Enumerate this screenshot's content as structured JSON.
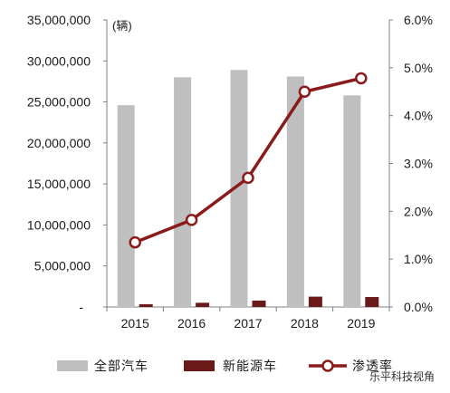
{
  "chart_data": {
    "type": "bar",
    "categories": [
      "2015",
      "2016",
      "2017",
      "2018",
      "2019"
    ],
    "series": [
      {
        "name": "全部汽车",
        "type": "bar",
        "axis": "left",
        "color": "#bfbfbf",
        "values": [
          24600000,
          28000000,
          28900000,
          28100000,
          25800000
        ]
      },
      {
        "name": "新能源车",
        "type": "bar",
        "axis": "left",
        "color": "#6b1a1a",
        "values": [
          330000,
          510000,
          780000,
          1260000,
          1210000
        ]
      },
      {
        "name": "渗透率",
        "type": "line",
        "axis": "right",
        "color": "#8b1a1a",
        "values": [
          0.0135,
          0.0182,
          0.027,
          0.045,
          0.0478
        ]
      }
    ],
    "ylim": [
      0,
      35000000
    ],
    "y_ticks": [
      "-",
      "5,000,000",
      "10,000,000",
      "15,000,000",
      "20,000,000",
      "25,000,000",
      "30,000,000",
      "35,000,000"
    ],
    "y2lim": [
      0,
      0.06
    ],
    "y2_ticks": [
      "0.0%",
      "1.0%",
      "2.0%",
      "3.0%",
      "4.0%",
      "5.0%",
      "6.0%"
    ],
    "unit_label": "(辆)",
    "legend_position": "bottom",
    "grid": false
  },
  "watermark": "乐平科技视角"
}
